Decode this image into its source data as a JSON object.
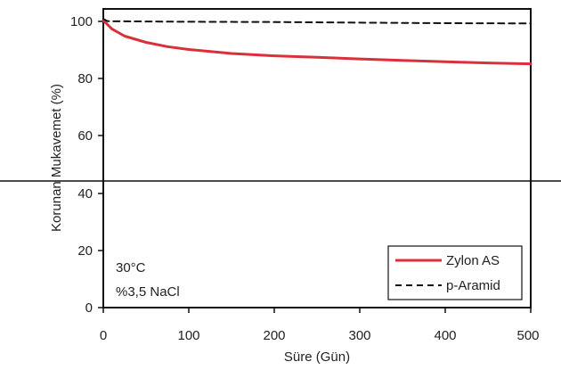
{
  "chart_data": {
    "type": "line",
    "xlabel": "Süre (Gün)",
    "ylabel": "Korunan Mukavemet (%)",
    "xlim": [
      0,
      500
    ],
    "ylim": [
      0,
      105
    ],
    "xticks": [
      "0",
      "100",
      "200",
      "300",
      "400",
      "500"
    ],
    "yticks": [
      "0",
      "20",
      "40",
      "60",
      "80",
      "100"
    ],
    "grid": false,
    "legend_position": "bottom-right",
    "annotations": [
      "30°C",
      "%3,5 NaCl"
    ],
    "series": [
      {
        "name": "Zylon AS",
        "color": "#d9303a",
        "style": "solid",
        "x": [
          0,
          10,
          25,
          50,
          75,
          100,
          150,
          200,
          250,
          300,
          350,
          400,
          450,
          500
        ],
        "y": [
          100.5,
          97.5,
          95,
          92.8,
          91.3,
          90.3,
          88.9,
          88.1,
          87.6,
          87.0,
          86.5,
          86.0,
          85.6,
          85.3
        ]
      },
      {
        "name": "p-Aramid",
        "color": "#111111",
        "style": "dashed",
        "x": [
          0,
          5,
          100,
          200,
          300,
          400,
          500
        ],
        "y": [
          101,
          100.2,
          100,
          99.9,
          99.7,
          99.5,
          99.4
        ]
      }
    ]
  }
}
